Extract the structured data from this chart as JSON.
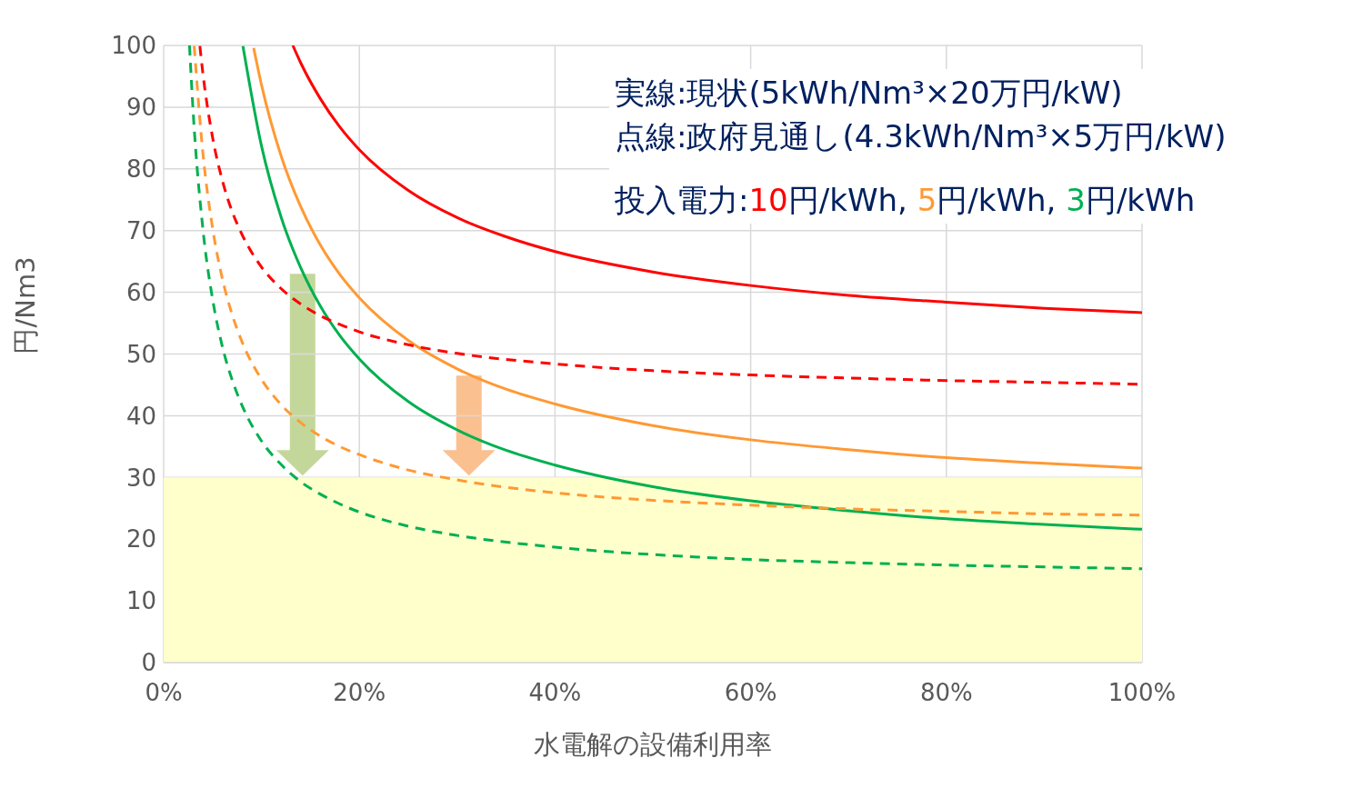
{
  "chart_data": {
    "type": "line",
    "xlabel": "水電解の設備利用率",
    "ylabel": "円/Nm3",
    "xlim": [
      0,
      100
    ],
    "ylim": [
      0,
      100
    ],
    "xticks": [
      {
        "value": 0,
        "label": "0%"
      },
      {
        "value": 20,
        "label": "20%"
      },
      {
        "value": 40,
        "label": "40%"
      },
      {
        "value": 60,
        "label": "60%"
      },
      {
        "value": 80,
        "label": "80%"
      },
      {
        "value": 100,
        "label": "100%"
      }
    ],
    "yticks": [
      0,
      10,
      20,
      30,
      40,
      50,
      60,
      70,
      80,
      90,
      100
    ],
    "grid": true,
    "legend": false,
    "marker": "none",
    "bands": [
      {
        "axis": "y",
        "from": 0,
        "to": 30,
        "color": "#ffffcc"
      }
    ],
    "annotations": [
      "実線:現状(5kWh/Nm³×20万円/kW)",
      "点線:政府見通し(4.3kWh/Nm³×5万円/kW)",
      "投入電力:10円/kWh, 5円/kWh, 3円/kWh"
    ],
    "series": [
      {
        "color": "#ff0000",
        "line_style": "solid",
        "x": [
          13.2,
          14,
          16,
          18,
          20,
          25,
          30,
          35,
          40,
          50,
          60,
          70,
          80,
          90,
          100
        ],
        "values": [
          100,
          97.2,
          91.4,
          86.8,
          83.1,
          76.5,
          72.1,
          69.0,
          66.6,
          63.3,
          61.1,
          59.5,
          58.4,
          57.4,
          56.7
        ]
      },
      {
        "color": "#ff9933",
        "line_style": "solid",
        "x": [
          9.2,
          10,
          12,
          14,
          16,
          18,
          20,
          25,
          30,
          35,
          40,
          50,
          60,
          70,
          80,
          90,
          100
        ],
        "values": [
          99.6,
          93.6,
          82.1,
          73.9,
          67.7,
          62.9,
          59.1,
          52.2,
          47.6,
          44.3,
          41.9,
          38.4,
          36.1,
          34.5,
          33.2,
          32.3,
          31.5
        ]
      },
      {
        "color": "#00b050",
        "line_style": "solid",
        "x": [
          8.1,
          10,
          12,
          14,
          16,
          18,
          20,
          25,
          30,
          35,
          40,
          50,
          60,
          70,
          80,
          90,
          100
        ],
        "values": [
          99.9,
          83.7,
          72.2,
          64.0,
          57.8,
          53.0,
          49.2,
          42.3,
          37.7,
          34.4,
          32.0,
          28.5,
          26.2,
          24.6,
          23.3,
          22.4,
          21.6
        ]
      },
      {
        "color": "#ff0000",
        "line_style": "dashed",
        "x": [
          3.7,
          4,
          5,
          6,
          7,
          8,
          10,
          12,
          14,
          16,
          18,
          20,
          25,
          30,
          40,
          50,
          60,
          70,
          80,
          90,
          100
        ],
        "values": [
          99.9,
          95.6,
          85.1,
          78.1,
          73.1,
          69.4,
          64.1,
          60.6,
          58.1,
          56.2,
          54.8,
          53.6,
          51.5,
          50.1,
          48.4,
          47.3,
          46.6,
          46.1,
          45.7,
          45.4,
          45.1
        ]
      },
      {
        "color": "#ff9933",
        "line_style": "dashed",
        "x": [
          3.12,
          4,
          5,
          6,
          7,
          8,
          10,
          12,
          14,
          16,
          18,
          20,
          25,
          30,
          40,
          50,
          60,
          70,
          80,
          90,
          100
        ],
        "values": [
          99.9,
          82.7,
          70.4,
          62.2,
          56.4,
          52.0,
          45.9,
          41.8,
          38.9,
          36.7,
          35.0,
          33.7,
          31.2,
          29.6,
          27.5,
          26.3,
          25.5,
          24.9,
          24.5,
          24.1,
          23.9
        ]
      },
      {
        "color": "#00b050",
        "line_style": "dashed",
        "x": [
          2.64,
          3,
          4,
          5,
          6,
          7,
          8,
          10,
          12,
          14,
          16,
          18,
          20,
          25,
          30,
          40,
          50,
          60,
          70,
          80,
          90,
          100
        ],
        "values": [
          100,
          89.6,
          70.4,
          58.9,
          51.2,
          45.8,
          41.7,
          35.9,
          32.1,
          29.3,
          27.3,
          25.7,
          24.4,
          22.1,
          20.6,
          18.7,
          17.5,
          16.7,
          16.2,
          15.8,
          15.5,
          15.2
        ]
      }
    ]
  }
}
